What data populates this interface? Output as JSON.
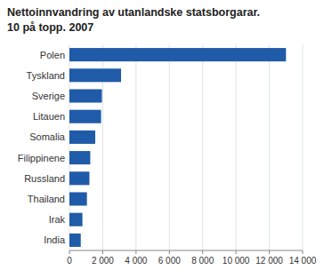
{
  "chart_data": {
    "type": "bar",
    "orientation": "horizontal",
    "title": "Nettoinnvandring av utanlandske statsborgarar.",
    "subtitle": "10 på topp. 2007",
    "categories": [
      "Polen",
      "Tyskland",
      "Sverige",
      "Litauen",
      "Somalia",
      "Filippinene",
      "Russland",
      "Thailand",
      "Irak",
      "India"
    ],
    "values": [
      13000,
      3100,
      1950,
      1900,
      1550,
      1250,
      1200,
      1050,
      780,
      680
    ],
    "color": "#1f5ba8",
    "xlim": [
      0,
      14000
    ],
    "xticks": [
      0,
      {
        "value": 2000,
        "label": "2 000"
      },
      {
        "value": 4000,
        "label": "4 000"
      },
      {
        "value": 6000,
        "label": "6 000"
      },
      {
        "value": 8000,
        "label": "8 000"
      },
      {
        "value": 10000,
        "label": "10 000"
      },
      {
        "value": 12000,
        "label": "12 000"
      },
      {
        "value": 14000,
        "label": "14 000"
      }
    ],
    "grid": true
  }
}
